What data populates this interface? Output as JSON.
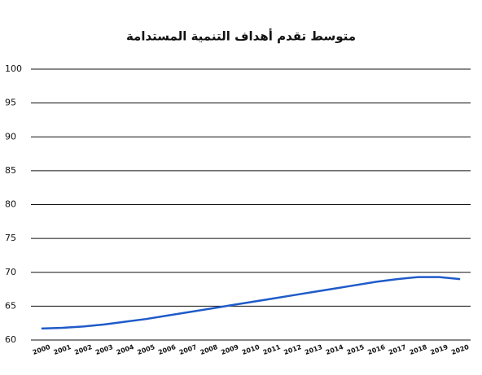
{
  "chart_data": {
    "type": "line",
    "title": "متوسط تقدم أهداف التنمية المستدامة",
    "categories": [
      "2000",
      "2001",
      "2002",
      "2003",
      "2004",
      "2005",
      "2006",
      "2007",
      "2008",
      "2009",
      "2010",
      "2011",
      "2012",
      "2013",
      "2014",
      "2015",
      "2016",
      "2017",
      "2018",
      "2019",
      "2020"
    ],
    "values": [
      61.7,
      61.8,
      62.0,
      62.3,
      62.7,
      63.1,
      63.6,
      64.1,
      64.6,
      65.1,
      65.6,
      66.1,
      66.6,
      67.1,
      67.6,
      68.1,
      68.6,
      69.0,
      69.3,
      69.3,
      69.0
    ],
    "color": "#1f5bc9",
    "ylim": [
      60,
      100
    ],
    "yticks": [
      60,
      65,
      70,
      75,
      80,
      85,
      90,
      95,
      100
    ],
    "grid": true
  }
}
